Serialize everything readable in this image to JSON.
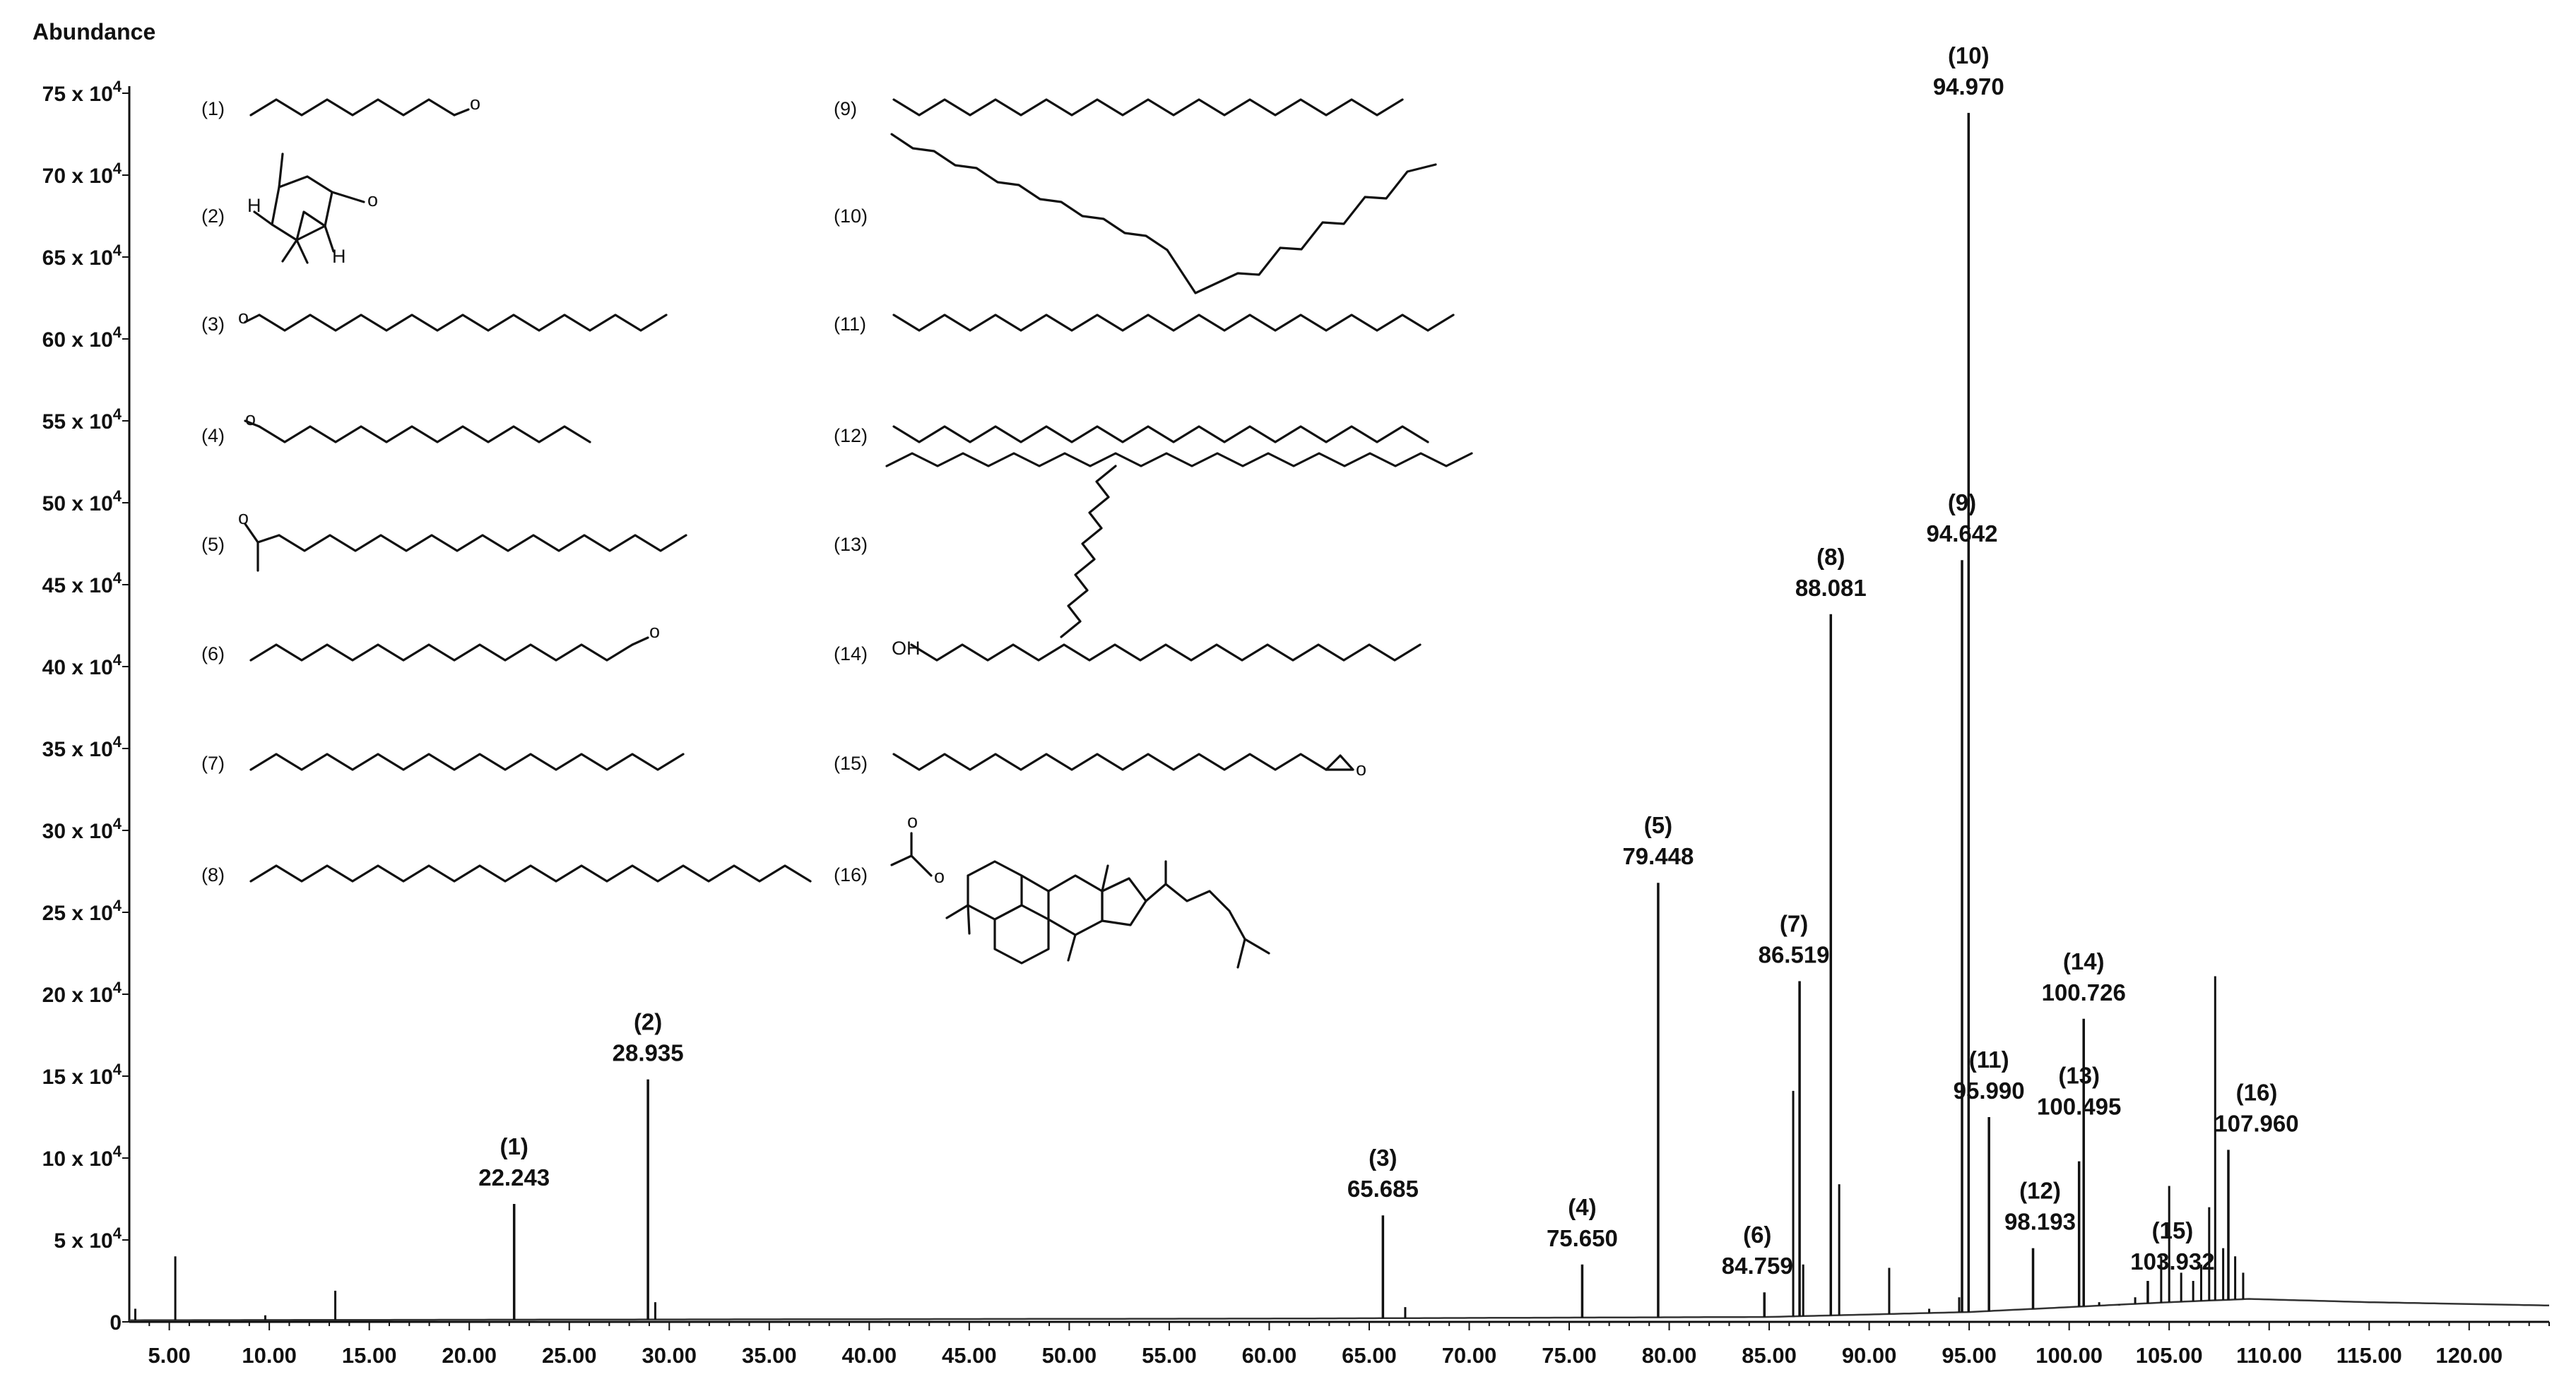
{
  "chart_data": {
    "type": "line",
    "ylabel": "Abundance",
    "xlabel": "",
    "xlim": [
      3.0,
      124.0
    ],
    "ylim": [
      0,
      75
    ],
    "y_unit_suffix": " x 10",
    "y_unit_exponent": "4",
    "xticks": [
      5,
      10,
      15,
      20,
      25,
      30,
      35,
      40,
      45,
      50,
      55,
      60,
      65,
      70,
      75,
      80,
      85,
      90,
      95,
      100,
      105,
      110,
      115,
      120
    ],
    "xtick_labels": [
      "5.00",
      "10.00",
      "15.00",
      "20.00",
      "25.00",
      "30.00",
      "35.00",
      "40.00",
      "45.00",
      "50.00",
      "55.00",
      "60.00",
      "65.00",
      "70.00",
      "75.00",
      "80.00",
      "85.00",
      "90.00",
      "95.00",
      "100.00",
      "105.00",
      "110.00",
      "115.00",
      "120.00"
    ],
    "yticks": [
      0,
      5,
      10,
      15,
      20,
      25,
      30,
      35,
      40,
      45,
      50,
      55,
      60,
      65,
      70,
      75
    ],
    "ytick_labels": [
      "0",
      "5",
      "10",
      "15",
      "20",
      "25",
      "30",
      "35",
      "40",
      "45",
      "50",
      "55",
      "60",
      "65",
      "70",
      "75"
    ],
    "peaks": [
      {
        "id": "(1)",
        "x": 22.243,
        "y": 7.2,
        "label": "22.243"
      },
      {
        "id": "(2)",
        "x": 28.935,
        "y": 14.8,
        "label": "28.935"
      },
      {
        "id": "(3)",
        "x": 65.685,
        "y": 6.5,
        "label": "65.685"
      },
      {
        "id": "(4)",
        "x": 75.65,
        "y": 3.5,
        "label": "75.650"
      },
      {
        "id": "(5)",
        "x": 79.448,
        "y": 26.8,
        "label": "79.448"
      },
      {
        "id": "(6)",
        "x": 84.759,
        "y": 1.8,
        "label": "84.759"
      },
      {
        "id": "(7)",
        "x": 86.519,
        "y": 20.8,
        "label": "86.519"
      },
      {
        "id": "(8)",
        "x": 88.081,
        "y": 43.2,
        "label": "88.081"
      },
      {
        "id": "(9)",
        "x": 94.642,
        "y": 46.5,
        "label": "94.642"
      },
      {
        "id": "(10)",
        "x": 94.97,
        "y": 73.8,
        "label": "94.970"
      },
      {
        "id": "(11)",
        "x": 95.99,
        "y": 12.5,
        "label": "95.990"
      },
      {
        "id": "(12)",
        "x": 98.193,
        "y": 4.5,
        "label": "98.193"
      },
      {
        "id": "(13)",
        "x": 100.495,
        "y": 9.8,
        "label": "100.495"
      },
      {
        "id": "(14)",
        "x": 100.726,
        "y": 18.5,
        "label": "100.726"
      },
      {
        "id": "(15)",
        "x": 103.932,
        "y": 2.5,
        "label": "103.932"
      },
      {
        "id": "(16)",
        "x": 107.96,
        "y": 10.5,
        "label": "107.960"
      }
    ],
    "minor_peaks": [
      {
        "x": 3.3,
        "y": 0.8
      },
      {
        "x": 5.3,
        "y": 4.0
      },
      {
        "x": 9.8,
        "y": 0.4
      },
      {
        "x": 13.3,
        "y": 1.9
      },
      {
        "x": 29.3,
        "y": 1.2
      },
      {
        "x": 66.8,
        "y": 0.9
      },
      {
        "x": 86.2,
        "y": 14.1
      },
      {
        "x": 86.7,
        "y": 3.5
      },
      {
        "x": 88.5,
        "y": 8.4
      },
      {
        "x": 91.0,
        "y": 3.3
      },
      {
        "x": 93.0,
        "y": 0.8
      },
      {
        "x": 94.5,
        "y": 1.5
      },
      {
        "x": 101.5,
        "y": 1.2
      },
      {
        "x": 102.5,
        "y": 1.0
      },
      {
        "x": 103.3,
        "y": 1.5
      },
      {
        "x": 104.6,
        "y": 4.0
      },
      {
        "x": 105.0,
        "y": 8.3
      },
      {
        "x": 105.6,
        "y": 3.0
      },
      {
        "x": 106.2,
        "y": 2.5
      },
      {
        "x": 106.6,
        "y": 3.5
      },
      {
        "x": 107.0,
        "y": 7.0
      },
      {
        "x": 107.3,
        "y": 21.1
      },
      {
        "x": 107.7,
        "y": 4.5
      },
      {
        "x": 108.3,
        "y": 4.0
      },
      {
        "x": 108.7,
        "y": 3.0
      }
    ],
    "baseline": [
      {
        "x": 3.0,
        "y": 0.1
      },
      {
        "x": 60.0,
        "y": 0.2
      },
      {
        "x": 85.0,
        "y": 0.3
      },
      {
        "x": 95.0,
        "y": 0.6
      },
      {
        "x": 105.0,
        "y": 1.2
      },
      {
        "x": 109.0,
        "y": 1.4
      },
      {
        "x": 115.0,
        "y": 1.2
      },
      {
        "x": 124.0,
        "y": 1.0
      }
    ]
  },
  "structures": [
    {
      "id": "(1)"
    },
    {
      "id": "(2)"
    },
    {
      "id": "(3)"
    },
    {
      "id": "(4)"
    },
    {
      "id": "(5)"
    },
    {
      "id": "(6)"
    },
    {
      "id": "(7)"
    },
    {
      "id": "(8)"
    },
    {
      "id": "(9)"
    },
    {
      "id": "(10)"
    },
    {
      "id": "(11)"
    },
    {
      "id": "(12)"
    },
    {
      "id": "(13)"
    },
    {
      "id": "(14)"
    },
    {
      "id": "(15)"
    },
    {
      "id": "(16)"
    }
  ],
  "struct_atoms": {
    "oxygen": "o",
    "hydroxyl": "OH",
    "hydrogen": "H"
  }
}
